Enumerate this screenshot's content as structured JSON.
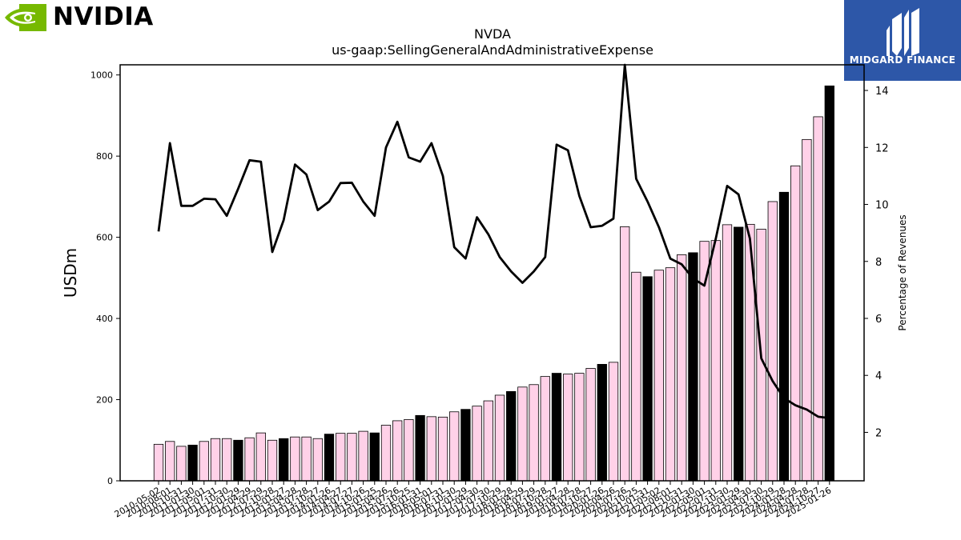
{
  "brand": {
    "name": "NVIDIA",
    "logo_icon": "nvidia-eye-icon",
    "color": "#76b900"
  },
  "partner": {
    "name": "MIDGARD FINANCE",
    "logo_icon": "midgard-m-icon",
    "background": "#2d57a8"
  },
  "chart_data": {
    "type": "bar",
    "title": "NVDA",
    "subtitle": "us-gaap:SellingGeneralAndAdministrativeExpense",
    "ylabel": "USDm",
    "y2label": "Percentage of Revenues",
    "ylim": [
      0,
      1025
    ],
    "y2lim": [
      0.3,
      14.9
    ],
    "yticks": [
      0,
      200,
      400,
      600,
      800,
      1000
    ],
    "y2ticks": [
      2,
      4,
      6,
      8,
      10,
      12,
      14
    ],
    "grid": false,
    "categories": [
      "2010-05-02",
      "2010-08-01",
      "2010-10-31",
      "2011-01-30",
      "2011-05-01",
      "2011-07-31",
      "2011-10-30",
      "2012-01-29",
      "2012-04-29",
      "2012-07-29",
      "2012-10-28",
      "2013-01-27",
      "2013-04-28",
      "2013-07-28",
      "2013-10-27",
      "2014-01-26",
      "2014-04-27",
      "2014-07-27",
      "2014-10-26",
      "2015-01-25",
      "2015-04-26",
      "2015-07-26",
      "2015-10-25",
      "2016-01-31",
      "2016-05-01",
      "2016-07-31",
      "2016-10-30",
      "2017-01-29",
      "2017-04-30",
      "2017-07-30",
      "2017-10-29",
      "2018-01-28",
      "2018-04-29",
      "2018-07-29",
      "2018-10-28",
      "2019-01-27",
      "2019-04-28",
      "2019-07-28",
      "2019-10-27",
      "2020-01-26",
      "2020-04-26",
      "2020-07-26",
      "2020-10-25",
      "2021-01-31",
      "2021-05-02",
      "2021-08-01",
      "2021-10-31",
      "2022-01-30",
      "2022-05-01",
      "2022-07-31",
      "2022-10-30",
      "2023-01-29",
      "2023-04-30",
      "2023-07-30",
      "2023-10-29",
      "2024-01-28",
      "2024-04-28",
      "2024-07-28",
      "2024-10-27",
      "2025-01-26"
    ],
    "series": [
      {
        "kind": "bar",
        "values": [
          90,
          97,
          85,
          88,
          97,
          104,
          104,
          100,
          106,
          118,
          100,
          104,
          108,
          108,
          104,
          115,
          117,
          117,
          122,
          118,
          137,
          148,
          151,
          161,
          158,
          157,
          170,
          176,
          184,
          197,
          211,
          220,
          231,
          237,
          257,
          265,
          263,
          265,
          277,
          287,
          292,
          626,
          514,
          503,
          519,
          525,
          557,
          562,
          590,
          592,
          631,
          625,
          632,
          620,
          688,
          711,
          776,
          841,
          897,
          973
        ],
        "highlight_every": 4,
        "highlight_offset": 3,
        "color": "#ffd1e8",
        "highlight_color": "#000000"
      },
      {
        "kind": "line",
        "axis": "y2",
        "color": "#000000",
        "values": [
          9.05,
          12.15,
          9.95,
          9.95,
          10.2,
          10.18,
          9.6,
          10.55,
          11.55,
          11.5,
          8.33,
          9.45,
          11.4,
          11.05,
          9.8,
          10.1,
          10.75,
          10.76,
          10.1,
          9.6,
          12.0,
          12.9,
          11.65,
          11.5,
          12.15,
          11.0,
          8.5,
          8.1,
          9.55,
          8.95,
          8.15,
          7.65,
          7.25,
          7.65,
          8.15,
          12.1,
          11.9,
          10.3,
          9.2,
          9.25,
          9.5,
          14.9,
          10.9,
          10.1,
          9.2,
          8.1,
          7.9,
          7.4,
          7.15,
          8.8,
          10.65,
          10.35,
          8.8,
          4.6,
          3.8,
          3.2,
          2.95,
          2.8,
          2.55,
          2.5
        ]
      }
    ]
  }
}
